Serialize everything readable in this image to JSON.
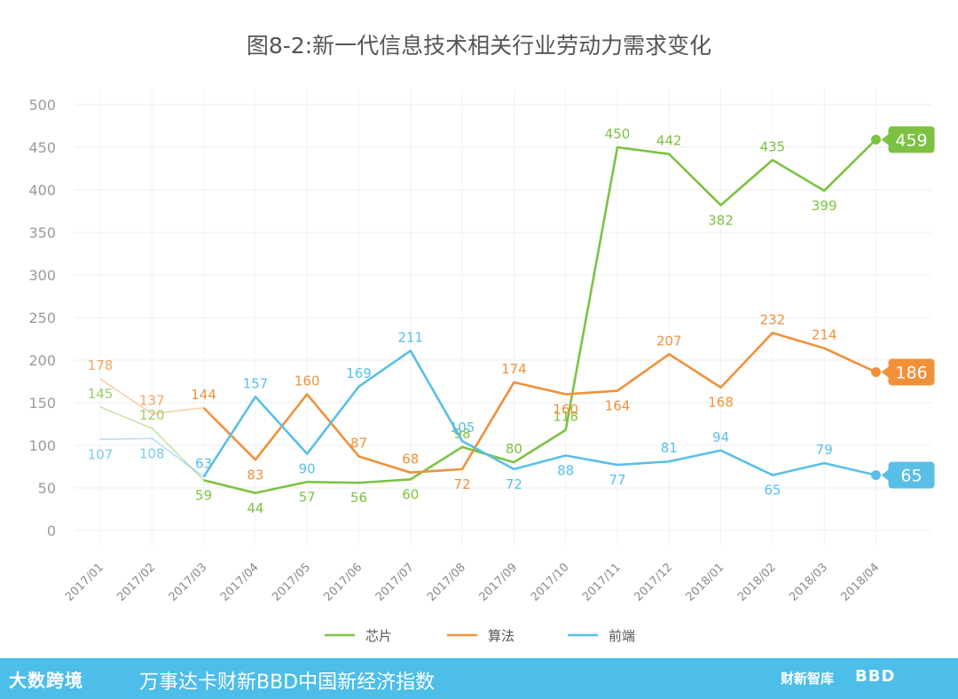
{
  "chart_data": {
    "type": "line",
    "title": "图8-2:新一代信息技术相关行业劳动力需求变化",
    "categories": [
      "2017/01",
      "2017/02",
      "2017/03",
      "2017/04",
      "2017/05",
      "2017/06",
      "2017/07",
      "2017/08",
      "2017/09",
      "2017/10",
      "2017/11",
      "2017/12",
      "2018/01",
      "2018/02",
      "2018/03",
      "2018/04"
    ],
    "ylim": [
      0,
      500
    ],
    "yticks": [
      0,
      50,
      100,
      150,
      200,
      250,
      300,
      350,
      400,
      450,
      500
    ],
    "grid": true,
    "legend_position": "bottom",
    "series": [
      {
        "name": "芯片",
        "color": "#7cc242",
        "values": [
          145,
          120,
          59,
          44,
          57,
          56,
          60,
          98,
          80,
          118,
          450,
          442,
          382,
          435,
          399,
          459
        ]
      },
      {
        "name": "算法",
        "color": "#f0913a",
        "values": [
          178,
          137,
          144,
          83,
          160,
          87,
          68,
          72,
          174,
          160,
          164,
          207,
          168,
          232,
          214,
          186
        ]
      },
      {
        "name": "前端",
        "color": "#59bfe6",
        "values": [
          107,
          108,
          63,
          157,
          90,
          169,
          211,
          105,
          72,
          88,
          77,
          81,
          94,
          65,
          79,
          65
        ]
      }
    ]
  },
  "footer": {
    "logo": "大数跨境",
    "text": "万事达卡财新BBD中国新经济指数",
    "brand": "财新智库",
    "bbd": "BBD"
  }
}
